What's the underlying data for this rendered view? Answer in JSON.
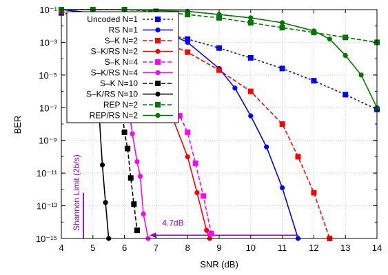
{
  "chart_data": {
    "type": "line",
    "xlabel": "SNR (dB)",
    "ylabel": "BER",
    "xlim": [
      4,
      14
    ],
    "ylim_exp": [
      -15,
      -1
    ],
    "y_scale": "log",
    "x_ticks": [
      "4",
      "5",
      "6",
      "7",
      "8",
      "9",
      "10",
      "11",
      "12",
      "13",
      "14"
    ],
    "y_ticks": [
      {
        "exp": -15,
        "label": "10⁻¹⁵"
      },
      {
        "exp": -13,
        "label": "10⁻¹³"
      },
      {
        "exp": -11,
        "label": "10⁻¹¹"
      },
      {
        "exp": -9,
        "label": "10⁻⁹"
      },
      {
        "exp": -7,
        "label": "10⁻⁷"
      },
      {
        "exp": -5,
        "label": "10⁻⁵"
      },
      {
        "exp": -3,
        "label": "10⁻³"
      },
      {
        "exp": -1,
        "label": "10⁻¹"
      }
    ],
    "grid": true,
    "legend_position": "top-left",
    "series": [
      {
        "name": "Uncoded N=1",
        "color": "#0000ff",
        "dash": "dotted",
        "marker": "square",
        "x": [
          4,
          5,
          6,
          7,
          8,
          9,
          10,
          11,
          12,
          13,
          14
        ],
        "y": [
          -1.2,
          -1.55,
          -1.9,
          -2.35,
          -2.8,
          -3.35,
          -3.95,
          -4.6,
          -5.35,
          -6.2,
          -7.1
        ]
      },
      {
        "name": "RS N=1",
        "color": "#0000ff",
        "dash": "solid",
        "marker": "circle",
        "x": [
          4,
          5,
          6,
          7,
          8,
          9,
          9.5,
          10,
          10.5,
          11,
          11.5
        ],
        "y": [
          -1.0,
          -1.2,
          -1.5,
          -2.1,
          -3.0,
          -4.6,
          -5.8,
          -7.5,
          -9.4,
          -11.9,
          -15.0
        ]
      },
      {
        "name": "S–K N=2",
        "color": "#ff0000",
        "dash": "dashed",
        "marker": "square",
        "x": [
          4,
          5,
          6,
          7,
          8,
          9,
          10,
          11,
          11.5,
          12,
          12.5
        ],
        "y": [
          -1.1,
          -1.5,
          -2.0,
          -2.8,
          -3.6,
          -4.7,
          -6.0,
          -8.0,
          -10.0,
          -12.2,
          -15.0
        ]
      },
      {
        "name": "S–K/RS N=2",
        "color": "#ff0000",
        "dash": "solid",
        "marker": "circle",
        "x": [
          6.5,
          7,
          7.5,
          8,
          8.3,
          8.6,
          8.7
        ],
        "y": [
          -4.0,
          -5.5,
          -7.5,
          -10.0,
          -12.2,
          -14.5,
          -15.0
        ]
      },
      {
        "name": "S–K N=4",
        "color": "#ff00ff",
        "dash": "dashed",
        "marker": "square",
        "x": [
          6,
          7,
          7.5,
          7.75,
          8,
          8.25,
          8.5,
          8.75
        ],
        "y": [
          -3.0,
          -5.5,
          -6.8,
          -7.5,
          -8.5,
          -10.4,
          -12.4,
          -14.7
        ]
      },
      {
        "name": "S–K/RS N=4",
        "color": "#ff00ff",
        "dash": "solid",
        "marker": "circle",
        "x": [
          6.0,
          6.25,
          6.4,
          6.5,
          6.6,
          6.75
        ],
        "y": [
          -5.2,
          -8.6,
          -10.3,
          -11.2,
          -13.5,
          -15.0
        ]
      },
      {
        "name": "S–K N=10",
        "color": "#000000",
        "dash": "dashed",
        "marker": "square",
        "x": [
          5.5,
          5.8,
          6.0,
          6.1,
          6.2,
          6.3,
          6.4
        ],
        "y": [
          -2.0,
          -5.0,
          -8.5,
          -9.5,
          -11.3,
          -12.9,
          -14.5
        ]
      },
      {
        "name": "S–K/RS N=10",
        "color": "#000000",
        "dash": "solid",
        "marker": "circle",
        "x": [
          5.0,
          5.2,
          5.3,
          5.4,
          5.5
        ],
        "y": [
          -3.5,
          -7.5,
          -10.5,
          -12.8,
          -15.0
        ]
      },
      {
        "name": "REP N=2",
        "color": "#007700",
        "dash": "dashed",
        "marker": "square",
        "x": [
          4,
          5,
          6,
          7,
          8,
          9,
          10,
          11,
          12,
          13,
          14
        ],
        "y": [
          -1.0,
          -1.0,
          -1.0,
          -1.1,
          -1.3,
          -1.5,
          -1.8,
          -2.1,
          -2.4,
          -2.7,
          -3.0
        ]
      },
      {
        "name": "REP/RS N=2",
        "color": "#007700",
        "dash": "solid",
        "marker": "circle",
        "x": [
          4,
          6,
          8,
          9,
          10,
          11,
          12,
          12.5,
          13,
          13.5,
          14
        ],
        "y": [
          -1.0,
          -1.0,
          -1.1,
          -1.3,
          -1.5,
          -1.8,
          -2.3,
          -2.8,
          -3.8,
          -5.0,
          -7.0
        ]
      }
    ],
    "annotations": {
      "shannon_label": "Shannon Limit (2b/s)",
      "shannon_x": 4.7,
      "gap_label": "4.7dB",
      "gap_from_x": 11.5,
      "gap_to_x": 6.8,
      "gap_y_exp": -14.8
    }
  }
}
